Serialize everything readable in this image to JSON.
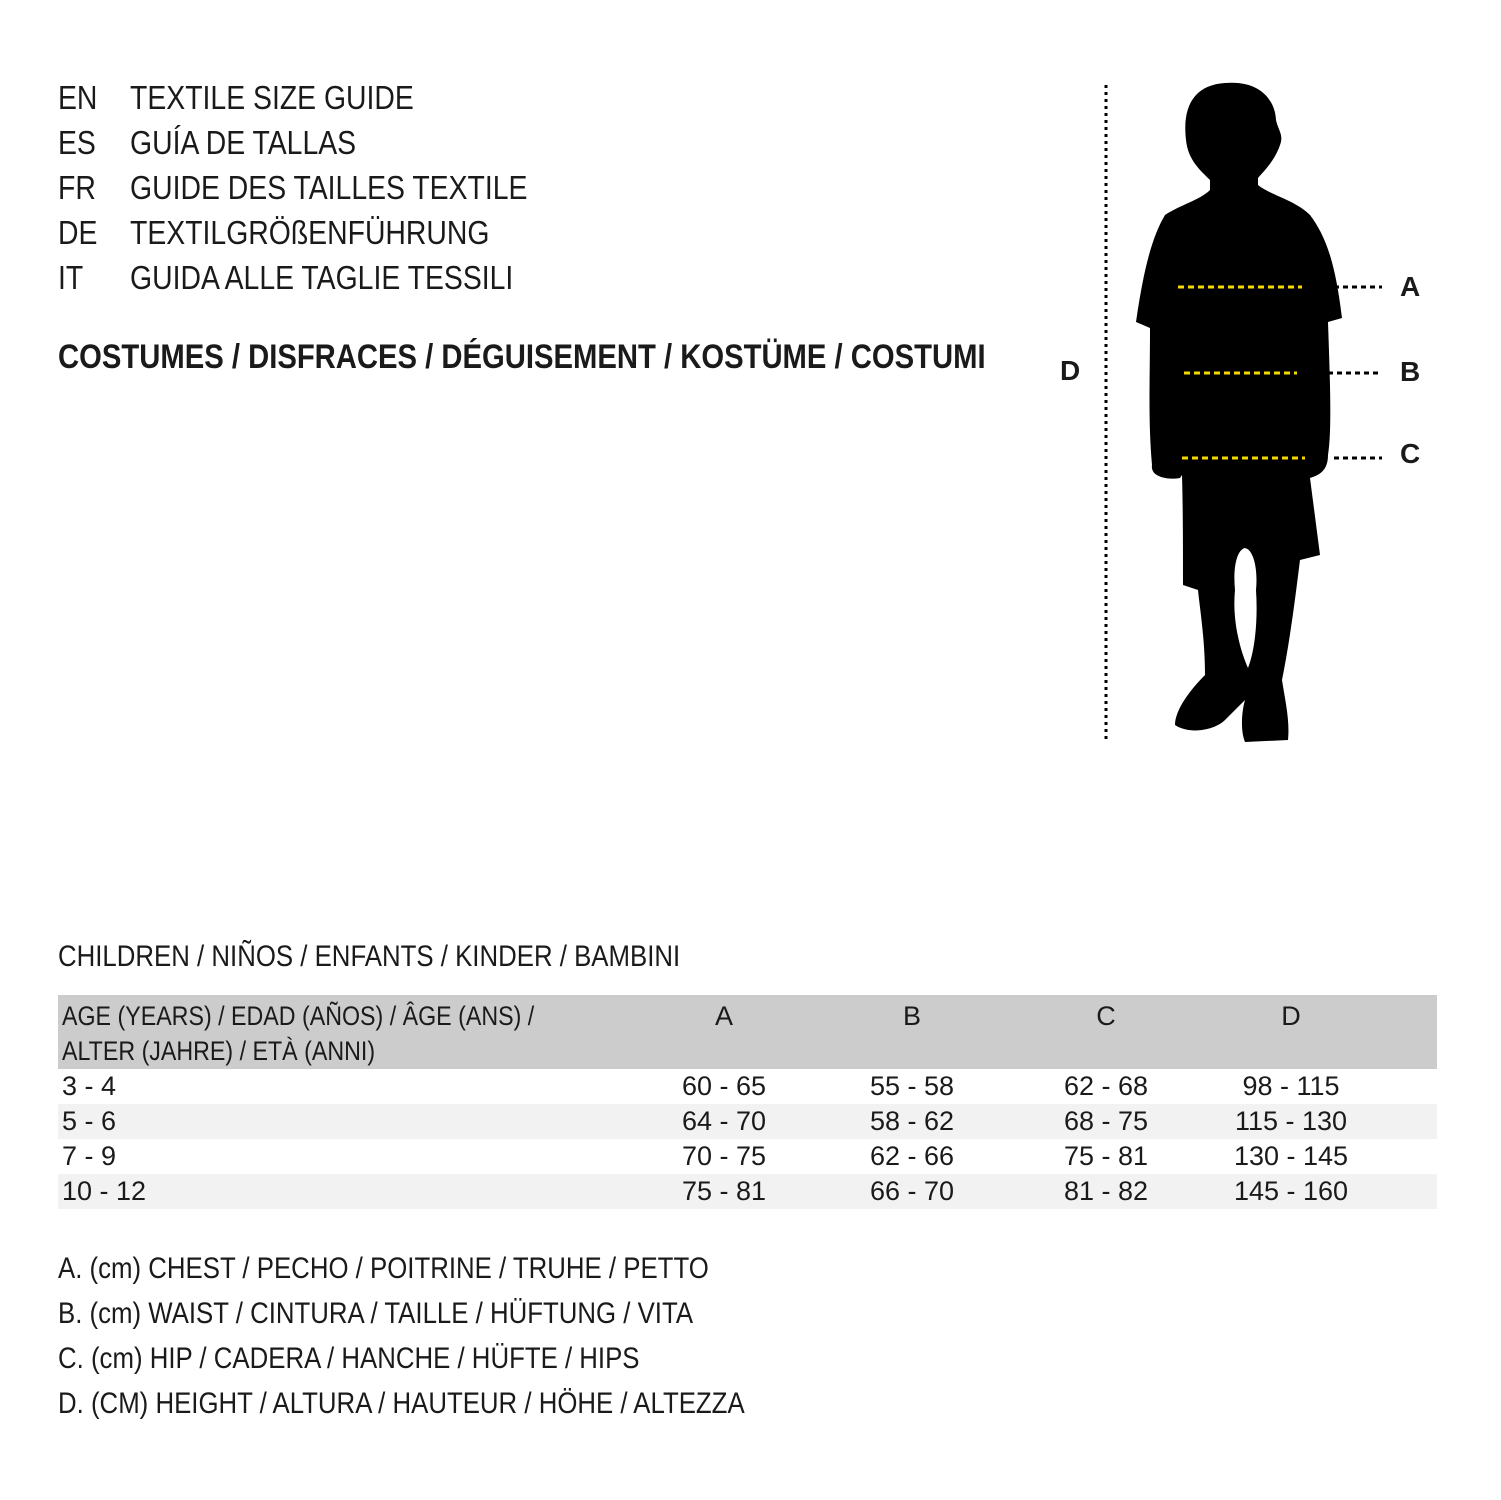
{
  "titles": [
    {
      "code": "EN",
      "text": "TEXTILE SIZE GUIDE"
    },
    {
      "code": "ES",
      "text": "GUÍA DE TALLAS"
    },
    {
      "code": "FR",
      "text": "GUIDE DES TAILLES TEXTILE"
    },
    {
      "code": "DE",
      "text": "TEXTILGRÖßENFÜHRUNG"
    },
    {
      "code": "IT",
      "text": "GUIDA ALLE TAGLIE TESSILI"
    }
  ],
  "category": "COSTUMES / DISFRACES / DÉGUISEMENT / KOSTÜME / COSTUMI",
  "figure": {
    "labels": {
      "a": "A",
      "b": "B",
      "c": "C",
      "d": "D"
    },
    "measure_line_color": "#f5d800",
    "silhouette_color": "#000000"
  },
  "table": {
    "caption": "CHILDREN / NIÑOS / ENFANTS / KINDER / BAMBINI",
    "headers": {
      "age_line1": "AGE (YEARS) / EDAD (AÑOS) / ÂGE (ANS) /",
      "age_line2": "ALTER (JAHRE) / ETÀ (ANNI)",
      "a": "A",
      "b": "B",
      "c": "C",
      "d": "D"
    },
    "rows": [
      [
        "3 - 4",
        "60 - 65",
        "55 - 58",
        "62 - 68",
        "98 - 115"
      ],
      [
        "5 - 6",
        "64 - 70",
        "58 - 62",
        "68 - 75",
        "115 - 130"
      ],
      [
        "7 - 9",
        "70 - 75",
        "62 - 66",
        "75 - 81",
        "130 - 145"
      ],
      [
        "10 - 12",
        "75 - 81",
        "66 - 70",
        "81 - 82",
        "145 - 160"
      ]
    ]
  },
  "legend": [
    "A. (cm) CHEST / PECHO / POITRINE / TRUHE / PETTO",
    "B. (cm) WAIST / CINTURA / TAILLE / HÜFTUNG / VITA",
    "C. (cm) HIP / CADERA / HANCHE / HÜFTE / HIPS",
    "D. (CM) HEIGHT / ALTURA / HAUTEUR / HÖHE / ALTEZZA"
  ]
}
